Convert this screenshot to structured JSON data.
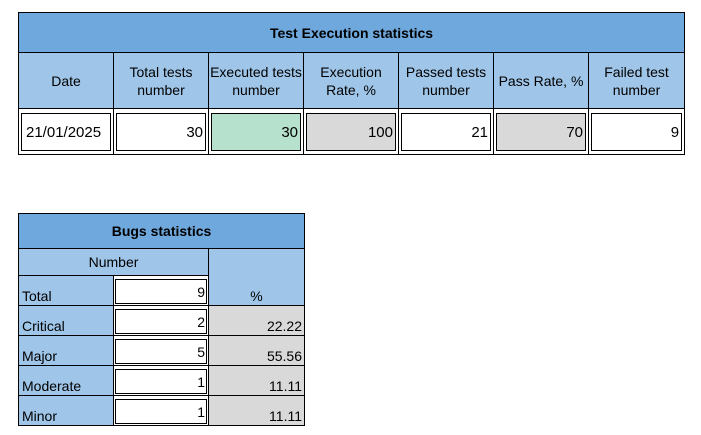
{
  "execution": {
    "title": "Test Execution statistics",
    "headers": [
      "Date",
      "Total tests number",
      "Executed tests number",
      "Execution Rate, %",
      "Passed tests number",
      "Pass Rate, %",
      "Failed test number"
    ],
    "row": {
      "date": "21/01/2025",
      "total": "30",
      "executed": "30",
      "execution_rate": "100",
      "passed": "21",
      "pass_rate": "70",
      "failed": "9"
    }
  },
  "bugs": {
    "title": "Bugs statistics",
    "number_header": "Number",
    "percent_header": "%",
    "rows": [
      {
        "label": "Total",
        "number": "9",
        "percent": ""
      },
      {
        "label": "Critical",
        "number": "2",
        "percent": "22.22"
      },
      {
        "label": "Major",
        "number": "5",
        "percent": "55.56"
      },
      {
        "label": "Moderate",
        "number": "1",
        "percent": "11.11"
      },
      {
        "label": "Minor",
        "number": "1",
        "percent": "11.11"
      }
    ]
  },
  "colors": {
    "title_bg": "#6fa8dc",
    "header_bg": "#9fc5e8",
    "executed_bg": "#b6e1cd",
    "rate_bg": "#d9d9d9"
  }
}
